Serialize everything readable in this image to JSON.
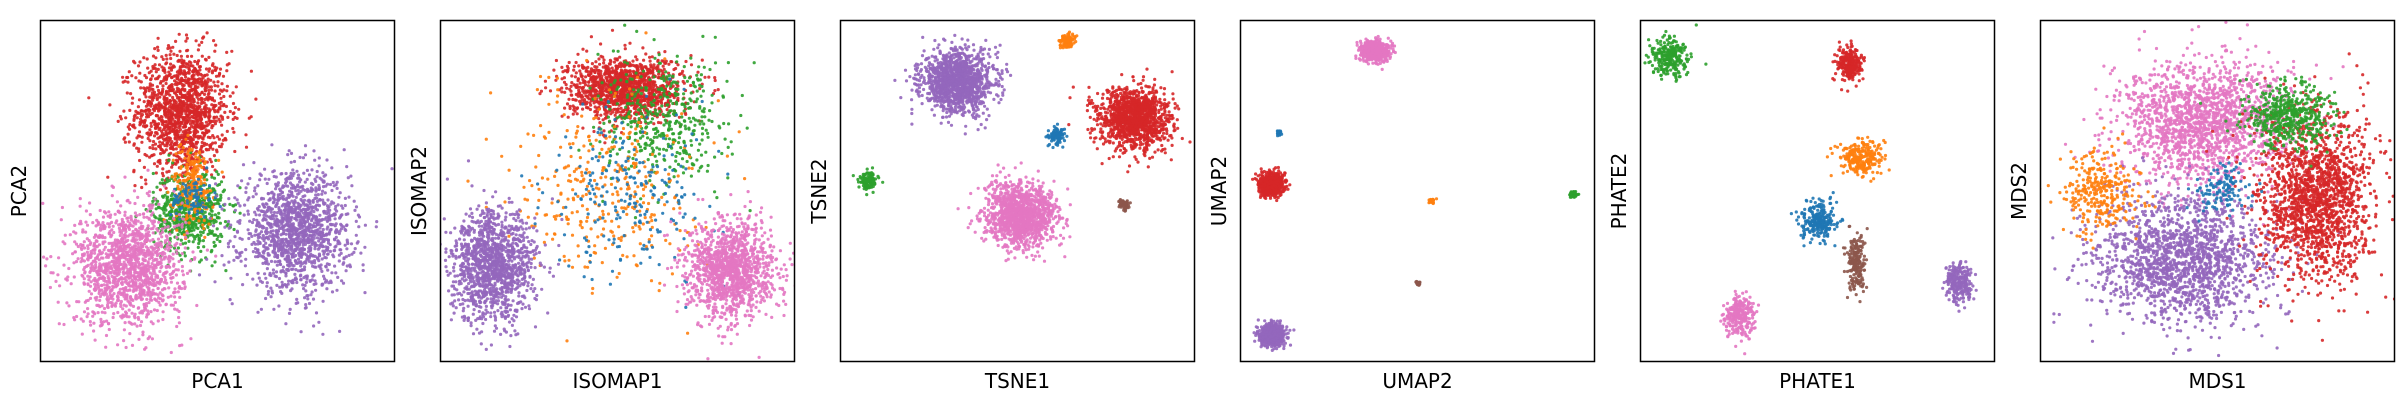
{
  "chart_data": [
    {
      "type": "scatter",
      "xlabel": "PCA1",
      "ylabel": "PCA2",
      "xlim": [
        0,
        1
      ],
      "ylim": [
        0,
        1
      ],
      "grid": false,
      "ticks": false,
      "series": [
        {
          "color": "#d62728",
          "center": [
            0.4,
            0.73
          ],
          "spread": [
            0.065,
            0.09
          ],
          "count": 1400
        },
        {
          "color": "#2ca02c",
          "center": [
            0.42,
            0.44
          ],
          "spread": [
            0.05,
            0.06
          ],
          "count": 600
        },
        {
          "color": "#ff7f0e",
          "center": [
            0.43,
            0.52
          ],
          "spread": [
            0.03,
            0.06
          ],
          "count": 220
        },
        {
          "color": "#1f77b4",
          "center": [
            0.43,
            0.48
          ],
          "spread": [
            0.03,
            0.03
          ],
          "count": 80
        },
        {
          "color": "#9467bd",
          "center": [
            0.72,
            0.38
          ],
          "spread": [
            0.075,
            0.085
          ],
          "count": 1400
        },
        {
          "color": "#e377c2",
          "center": [
            0.25,
            0.28
          ],
          "spread": [
            0.075,
            0.085
          ],
          "count": 1400
        }
      ]
    },
    {
      "type": "scatter",
      "xlabel": "ISOMAP1",
      "ylabel": "ISOMAP2",
      "xlim": [
        0,
        1
      ],
      "ylim": [
        0,
        1
      ],
      "grid": false,
      "ticks": false,
      "series": [
        {
          "color": "#d62728",
          "center": [
            0.52,
            0.8
          ],
          "spread": [
            0.08,
            0.045
          ],
          "count": 1300
        },
        {
          "color": "#2ca02c",
          "center": [
            0.63,
            0.7
          ],
          "spread": [
            0.09,
            0.09
          ],
          "count": 450
        },
        {
          "color": "#ff7f0e",
          "center": [
            0.47,
            0.52
          ],
          "spread": [
            0.12,
            0.14
          ],
          "count": 350
        },
        {
          "color": "#1f77b4",
          "center": [
            0.55,
            0.5
          ],
          "spread": [
            0.12,
            0.12
          ],
          "count": 220
        },
        {
          "color": "#9467bd",
          "center": [
            0.15,
            0.28
          ],
          "spread": [
            0.06,
            0.08
          ],
          "count": 1300
        },
        {
          "color": "#e377c2",
          "center": [
            0.82,
            0.27
          ],
          "spread": [
            0.06,
            0.07
          ],
          "count": 1300
        }
      ]
    },
    {
      "type": "scatter",
      "xlabel": "TSNE1",
      "ylabel": "TSNE2",
      "xlim": [
        0,
        1
      ],
      "ylim": [
        0,
        1
      ],
      "grid": false,
      "ticks": false,
      "series": [
        {
          "color": "#9467bd",
          "center": [
            0.33,
            0.82
          ],
          "spread": [
            0.05,
            0.045
          ],
          "count": 1300
        },
        {
          "color": "#ff7f0e",
          "center": [
            0.64,
            0.94
          ],
          "spread": [
            0.01,
            0.01
          ],
          "count": 120
        },
        {
          "color": "#d62728",
          "center": [
            0.83,
            0.71
          ],
          "spread": [
            0.05,
            0.045
          ],
          "count": 1300
        },
        {
          "color": "#1f77b4",
          "center": [
            0.61,
            0.66
          ],
          "spread": [
            0.012,
            0.012
          ],
          "count": 100
        },
        {
          "color": "#2ca02c",
          "center": [
            0.08,
            0.53
          ],
          "spread": [
            0.012,
            0.015
          ],
          "count": 130
        },
        {
          "color": "#8c564b",
          "center": [
            0.8,
            0.46
          ],
          "spread": [
            0.008,
            0.008
          ],
          "count": 60
        },
        {
          "color": "#e377c2",
          "center": [
            0.51,
            0.43
          ],
          "spread": [
            0.05,
            0.045
          ],
          "count": 1300
        }
      ]
    },
    {
      "type": "scatter",
      "xlabel": "UMAP2",
      "ylabel": "UMAP2",
      "xlim": [
        0,
        1
      ],
      "ylim": [
        0,
        1
      ],
      "grid": false,
      "ticks": false,
      "series": [
        {
          "color": "#e377c2",
          "center": [
            0.38,
            0.91
          ],
          "spread": [
            0.02,
            0.015
          ],
          "count": 600
        },
        {
          "color": "#1f77b4",
          "center": [
            0.11,
            0.67
          ],
          "spread": [
            0.003,
            0.004
          ],
          "count": 30
        },
        {
          "color": "#d62728",
          "center": [
            0.09,
            0.52
          ],
          "spread": [
            0.018,
            0.016
          ],
          "count": 600
        },
        {
          "color": "#ff7f0e",
          "center": [
            0.54,
            0.47
          ],
          "spread": [
            0.004,
            0.003
          ],
          "count": 40
        },
        {
          "color": "#2ca02c",
          "center": [
            0.94,
            0.49
          ],
          "spread": [
            0.005,
            0.004
          ],
          "count": 50
        },
        {
          "color": "#8c564b",
          "center": [
            0.5,
            0.23
          ],
          "spread": [
            0.003,
            0.003
          ],
          "count": 30
        },
        {
          "color": "#9467bd",
          "center": [
            0.09,
            0.08
          ],
          "spread": [
            0.018,
            0.016
          ],
          "count": 600
        }
      ]
    },
    {
      "type": "scatter",
      "xlabel": "PHATE1",
      "ylabel": "PHATE2",
      "xlim": [
        0,
        1
      ],
      "ylim": [
        0,
        1
      ],
      "grid": false,
      "ticks": false,
      "series": [
        {
          "color": "#2ca02c",
          "center": [
            0.08,
            0.89
          ],
          "spread": [
            0.025,
            0.03
          ],
          "count": 260
        },
        {
          "color": "#d62728",
          "center": [
            0.59,
            0.87
          ],
          "spread": [
            0.018,
            0.025
          ],
          "count": 260
        },
        {
          "color": "#ff7f0e",
          "center": [
            0.62,
            0.6
          ],
          "spread": [
            0.03,
            0.025
          ],
          "count": 260
        },
        {
          "color": "#1f77b4",
          "center": [
            0.5,
            0.41
          ],
          "spread": [
            0.025,
            0.03
          ],
          "count": 260
        },
        {
          "color": "#8c564b",
          "center": [
            0.61,
            0.29
          ],
          "spread": [
            0.012,
            0.04
          ],
          "count": 200
        },
        {
          "color": "#9467bd",
          "center": [
            0.9,
            0.23
          ],
          "spread": [
            0.02,
            0.03
          ],
          "count": 260
        },
        {
          "color": "#e377c2",
          "center": [
            0.28,
            0.13
          ],
          "spread": [
            0.02,
            0.03
          ],
          "count": 260
        }
      ]
    },
    {
      "type": "scatter",
      "xlabel": "MDS1",
      "ylabel": "MDS2",
      "xlim": [
        0,
        1
      ],
      "ylim": [
        0,
        1
      ],
      "grid": false,
      "ticks": false,
      "series": [
        {
          "color": "#e377c2",
          "center": [
            0.46,
            0.7
          ],
          "spread": [
            0.12,
            0.09
          ],
          "count": 1700
        },
        {
          "color": "#9467bd",
          "center": [
            0.4,
            0.3
          ],
          "spread": [
            0.12,
            0.09
          ],
          "count": 1700
        },
        {
          "color": "#d62728",
          "center": [
            0.78,
            0.48
          ],
          "spread": [
            0.08,
            0.12
          ],
          "count": 1700
        },
        {
          "color": "#2ca02c",
          "center": [
            0.7,
            0.72
          ],
          "spread": [
            0.06,
            0.05
          ],
          "count": 500
        },
        {
          "color": "#ff7f0e",
          "center": [
            0.17,
            0.5
          ],
          "spread": [
            0.05,
            0.06
          ],
          "count": 300
        },
        {
          "color": "#1f77b4",
          "center": [
            0.52,
            0.5
          ],
          "spread": [
            0.04,
            0.03
          ],
          "count": 120
        }
      ]
    }
  ]
}
